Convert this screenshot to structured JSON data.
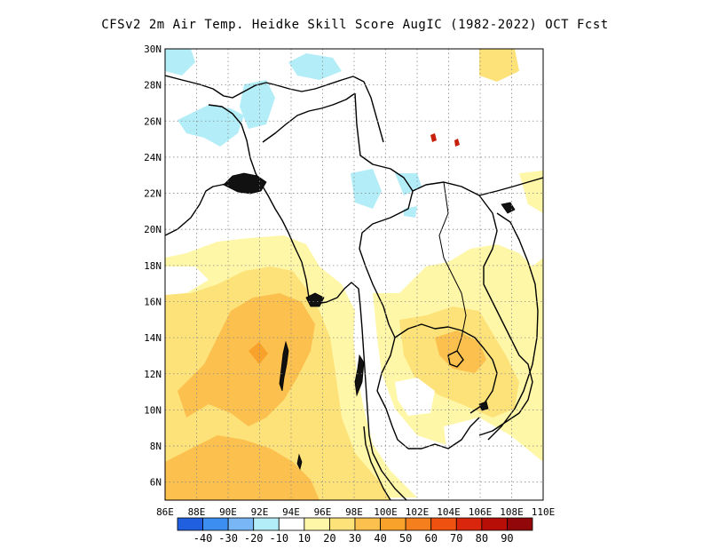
{
  "title": "CFSv2  2m Air Temp. Heidke Skill Score AugIC (1982-2022) OCT Fcst",
  "map": {
    "lon_range": [
      86,
      110
    ],
    "lat_range": [
      5,
      30
    ],
    "lat_ticks": [
      "30N",
      "28N",
      "26N",
      "24N",
      "22N",
      "20N",
      "18N",
      "16N",
      "14N",
      "12N",
      "10N",
      "8N",
      "6N"
    ],
    "lon_ticks": [
      "86E",
      "88E",
      "90E",
      "92E",
      "94E",
      "96E",
      "98E",
      "100E",
      "102E",
      "104E",
      "106E",
      "108E",
      "110E"
    ],
    "grid": "dotted"
  },
  "colorbar": {
    "colors": [
      "#1f5fe0",
      "#3c8ef0",
      "#78b6f5",
      "#b3eef8",
      "#ffffff",
      "#fff7a8",
      "#fde27a",
      "#fbc04e",
      "#f8a22c",
      "#f57f1c",
      "#ef5110",
      "#d9260c",
      "#b80e08",
      "#92070a"
    ],
    "labels": [
      "-40",
      "-30",
      "-20",
      "-10",
      "10",
      "20",
      "30",
      "40",
      "50",
      "60",
      "70",
      "80",
      "90"
    ]
  }
}
